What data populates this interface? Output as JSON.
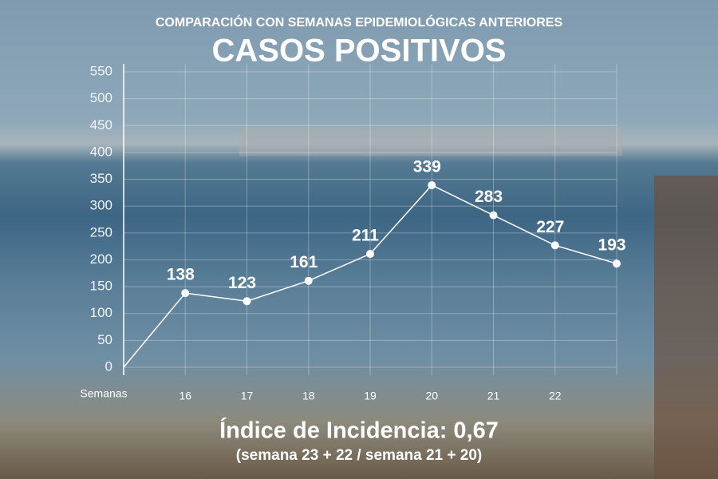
{
  "chart_data": {
    "type": "line",
    "supertitle": "COMPARACIÓN CON SEMANAS EPIDEMIOLÓGICAS ANTERIORES",
    "title": "CASOS POSITIVOS",
    "xlabel": "Semanas",
    "categories": [
      null,
      "16",
      "17",
      "18",
      "19",
      "20",
      "21",
      "22",
      null
    ],
    "values": [
      0,
      138,
      123,
      161,
      211,
      339,
      283,
      227,
      193
    ],
    "value_labels": [
      null,
      "138",
      "123",
      "161",
      "211",
      "339",
      "283",
      "227",
      "193"
    ],
    "color": "#ffffff",
    "ylim": [
      0,
      550
    ],
    "yticks": [
      0,
      50,
      100,
      150,
      200,
      250,
      300,
      350,
      400,
      450,
      500,
      550
    ],
    "grid": true,
    "annotations": [
      "Índice de Incidencia: 0,67",
      "(semana 23 + 22 / semana 21 + 20)"
    ]
  }
}
